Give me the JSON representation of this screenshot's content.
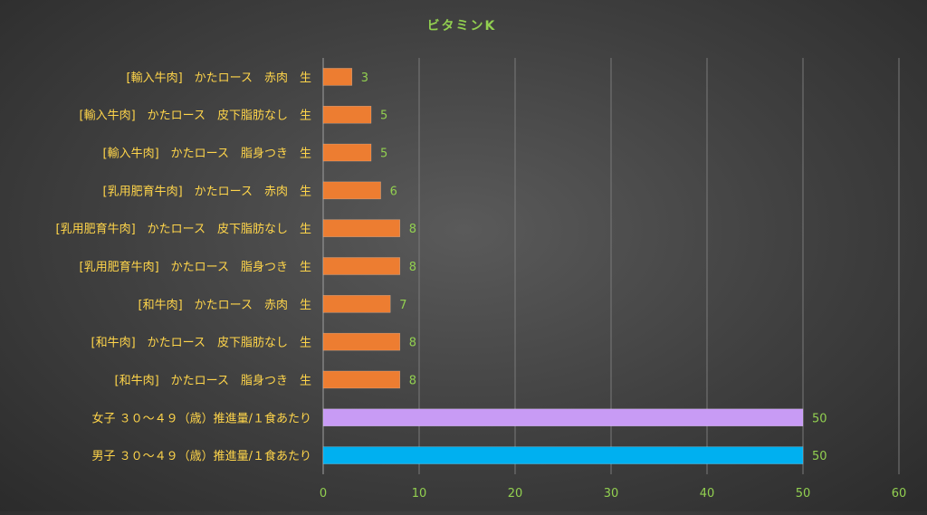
{
  "chart_data": {
    "type": "bar",
    "orientation": "horizontal",
    "title": "ビタミンK",
    "categories": [
      "[輸入牛肉]　かたロース　赤肉　生",
      "[輸入牛肉]　かたロース　皮下脂肪なし　生",
      "[輸入牛肉]　かたロース　脂身つき　生",
      "[乳用肥育牛肉]　かたロース　赤肉　生",
      "[乳用肥育牛肉]　かたロース　皮下脂肪なし　生",
      "[乳用肥育牛肉]　かたロース　脂身つき　生",
      "[和牛肉]　かたロース　赤肉　生",
      "[和牛肉]　かたロース　皮下脂肪なし　生",
      "[和牛肉]　かたロース　脂身つき　生",
      "女子 ３０～４９（歳）推進量/１食あたり",
      "男子 ３０～４９（歳）推進量/１食あたり"
    ],
    "values": [
      3,
      5,
      5,
      6,
      8,
      8,
      7,
      8,
      8,
      50,
      50
    ],
    "colors": [
      "#ED7D31",
      "#ED7D31",
      "#ED7D31",
      "#ED7D31",
      "#ED7D31",
      "#ED7D31",
      "#ED7D31",
      "#ED7D31",
      "#ED7D31",
      "#C89BF5",
      "#00B0F0"
    ],
    "xlim": [
      0,
      60
    ],
    "xticks": [
      0,
      10,
      20,
      30,
      40,
      50,
      60
    ],
    "grid": true,
    "xlabel": "",
    "ylabel": ""
  },
  "style": {
    "title_color": "#92D050",
    "category_color": "#FFD54A",
    "value_label_color": "#92D050",
    "tick_color": "#92D050",
    "grid_color": "#7a7a7a",
    "axis_color": "#a0a0a0"
  }
}
